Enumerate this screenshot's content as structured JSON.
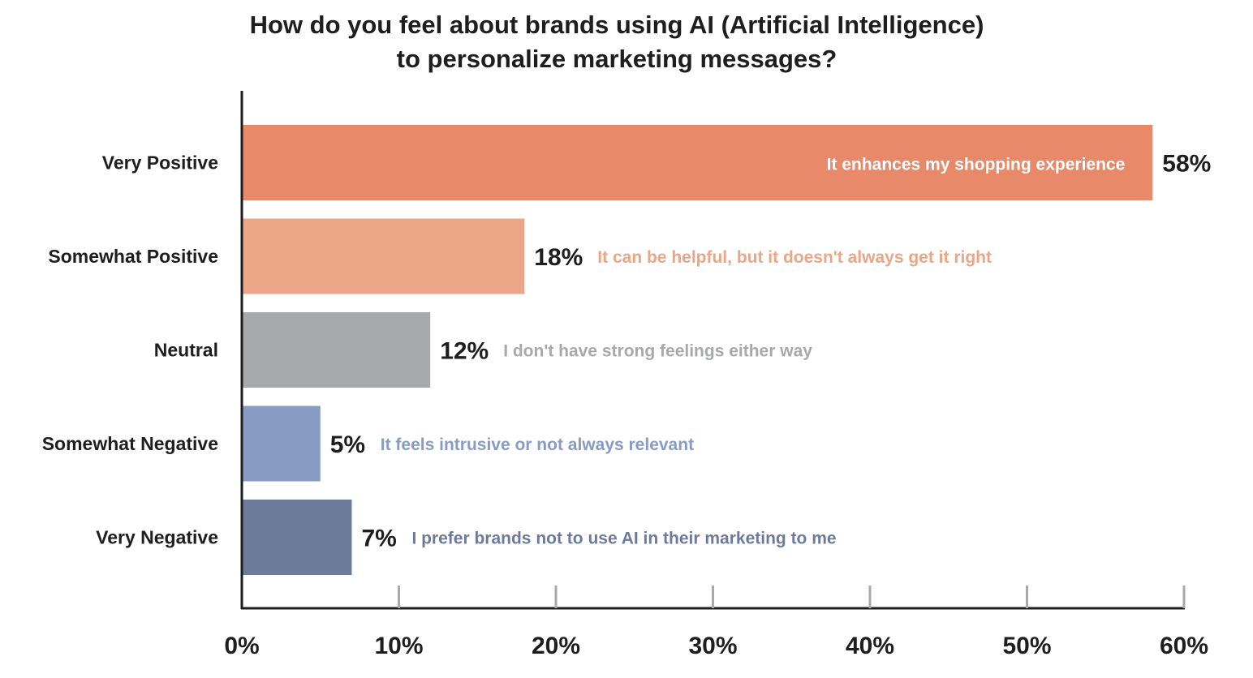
{
  "chart_data": {
    "type": "bar",
    "orientation": "horizontal",
    "title": "How do you feel about brands using AI (Artificial Intelligence) to personalize marketing messages?",
    "title_lines": [
      "How do you feel about brands using AI (Artificial Intelligence)",
      "to personalize marketing messages?"
    ],
    "categories": [
      "Very Positive",
      "Somewhat Positive",
      "Neutral",
      "Somewhat Negative",
      "Very Negative"
    ],
    "values": [
      58,
      18,
      12,
      5,
      7
    ],
    "value_labels": [
      "58%",
      "18%",
      "12%",
      "5%",
      "7%"
    ],
    "annotations": [
      "It enhances my shopping experience",
      "It can be helpful, but it doesn't always get it right",
      "I don't have strong feelings either way",
      "It feels intrusive or not always relevant",
      "I prefer brands not to use AI in their marketing to me"
    ],
    "colors": [
      "#e8896a",
      "#eba587",
      "#a8a9ab",
      "#889bc2",
      "#6e7a9a"
    ],
    "annotation_colors": [
      "#ffffff",
      "#eba587",
      "#a8a9ab",
      "#889bc2",
      "#6e7a9a"
    ],
    "xlim": [
      0,
      60
    ],
    "xticks": [
      0,
      10,
      20,
      30,
      40,
      50,
      60
    ],
    "xtick_labels": [
      "0%",
      "10%",
      "20%",
      "30%",
      "40%",
      "50%",
      "60%"
    ],
    "xlabel": "",
    "ylabel": "",
    "grid": false,
    "legend": "none"
  }
}
